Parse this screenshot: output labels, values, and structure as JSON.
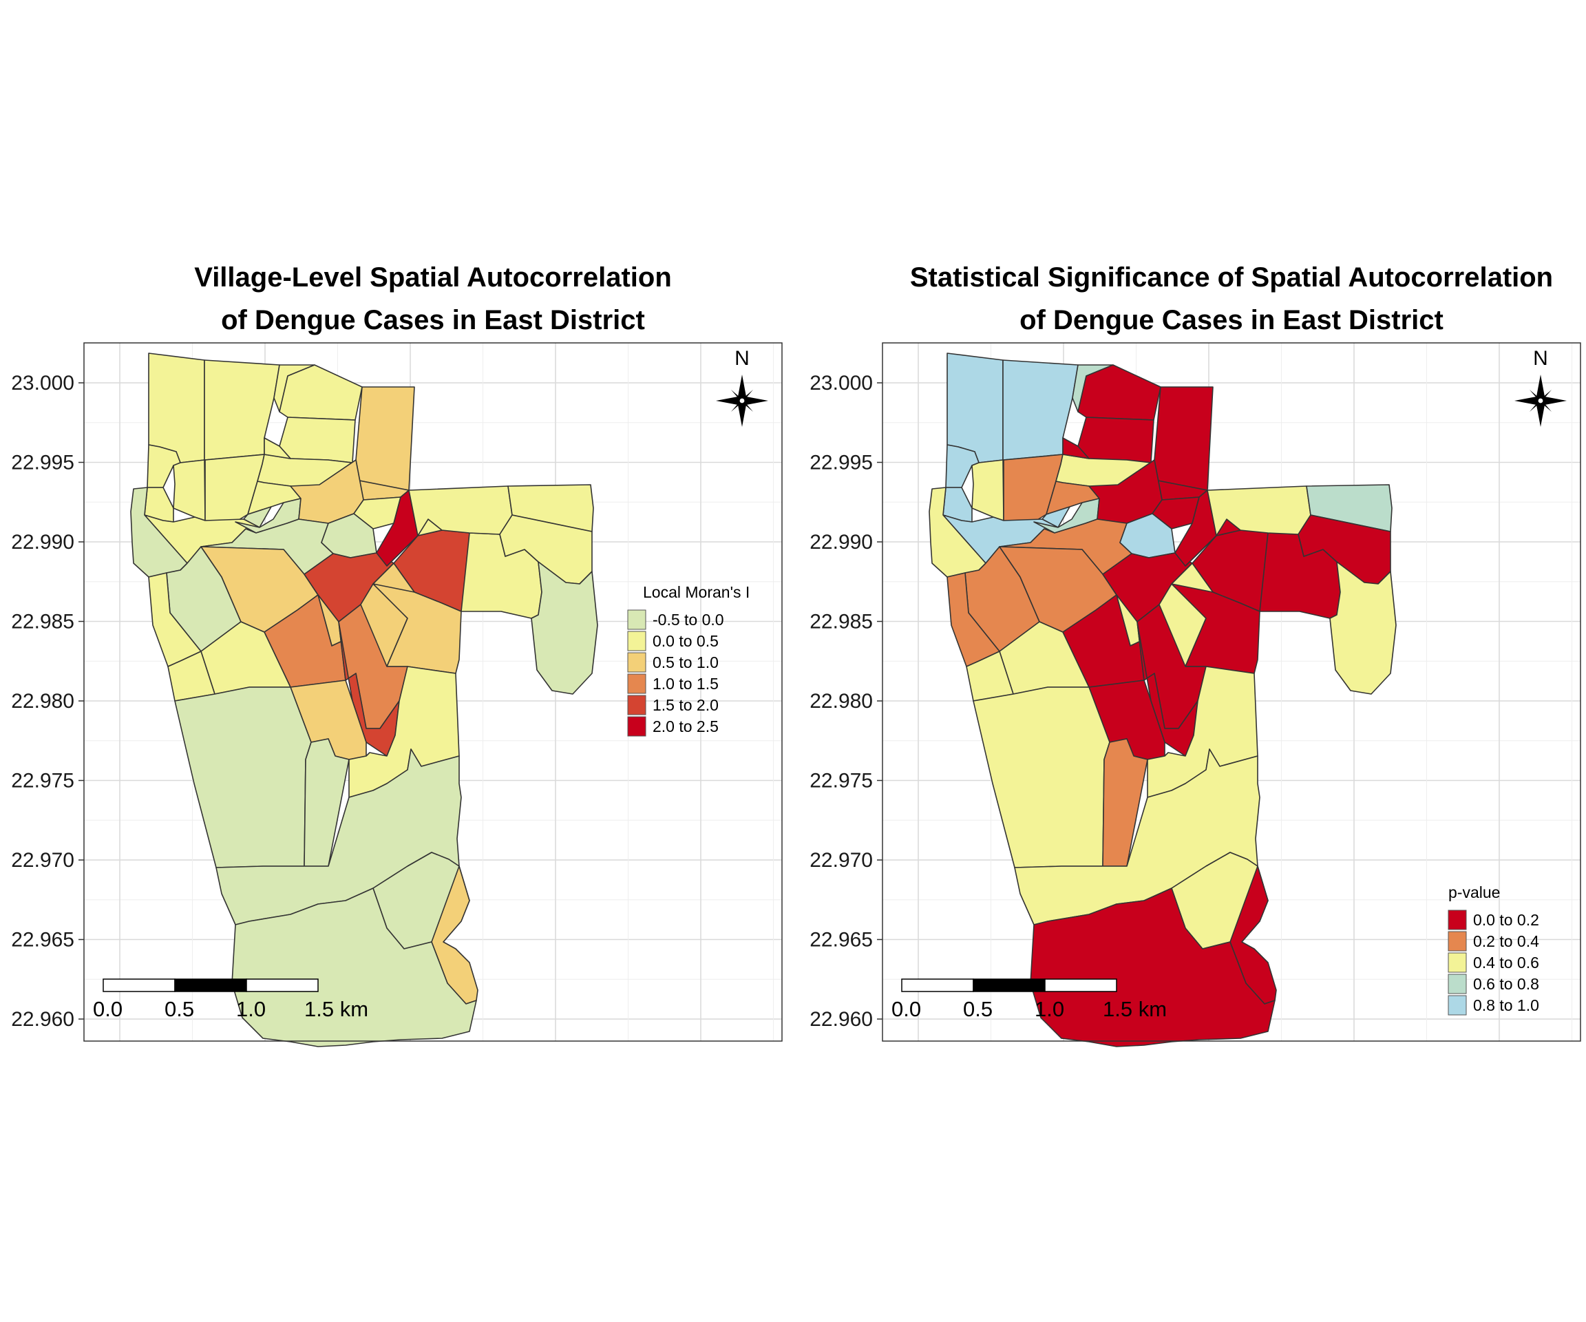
{
  "panels": [
    {
      "id": "moran",
      "title_line1": "Village-Level Spatial Autocorrelation",
      "title_line2": "of Dengue Cases in East District",
      "legend_title": "Local Moran's I",
      "legend": [
        {
          "label": "-0.5 to 0.0",
          "color": "#D8E8B4"
        },
        {
          "label": "0.0 to 0.5",
          "color": "#F3F397"
        },
        {
          "label": "0.5 to 1.0",
          "color": "#F3D078"
        },
        {
          "label": "1.0 to 1.5",
          "color": "#E5874F"
        },
        {
          "label": "1.5 to 2.0",
          "color": "#D44431"
        },
        {
          "label": "2.0 to 2.5",
          "color": "#C8001C"
        }
      ]
    },
    {
      "id": "pvalue",
      "title_line1": "Statistical Significance of Spatial Autocorrelation",
      "title_line2": "of Dengue Cases in East District",
      "legend_title": "p-value",
      "legend": [
        {
          "label": "0.0 to 0.2",
          "color": "#C8001C"
        },
        {
          "label": "0.2 to 0.4",
          "color": "#E5874F"
        },
        {
          "label": "0.4 to 0.6",
          "color": "#F3F397"
        },
        {
          "label": "0.6 to 0.8",
          "color": "#BBDDCB"
        },
        {
          "label": "0.8 to 1.0",
          "color": "#ADD8E6"
        }
      ]
    }
  ],
  "y_axis_ticks": [
    "23.000",
    "22.995",
    "22.990",
    "22.985",
    "22.980",
    "22.975",
    "22.970",
    "22.965",
    "22.960"
  ],
  "scale_bar": {
    "labels": [
      "0.0",
      "0.5",
      "1.0",
      "1.5 km"
    ]
  },
  "north_label": "N",
  "villages": [
    {
      "id": "v01",
      "moran": 1,
      "p": 4
    },
    {
      "id": "v02",
      "moran": 1,
      "p": 4
    },
    {
      "id": "v03",
      "moran": 1,
      "p": 3
    },
    {
      "id": "v04",
      "moran": 1,
      "p": 0
    },
    {
      "id": "v05",
      "moran": 2,
      "p": 0
    },
    {
      "id": "v06",
      "moran": 1,
      "p": 4
    },
    {
      "id": "v07",
      "moran": 1,
      "p": 2
    },
    {
      "id": "v08",
      "moran": 1,
      "p": 4
    },
    {
      "id": "v09",
      "moran": 1,
      "p": 1
    },
    {
      "id": "v10",
      "moran": 1,
      "p": 0
    },
    {
      "id": "v11",
      "moran": 1,
      "p": 2
    },
    {
      "id": "v12",
      "moran": 1,
      "p": 0
    },
    {
      "id": "v13",
      "moran": 2,
      "p": 0
    },
    {
      "id": "v14",
      "moran": 1,
      "p": 1
    },
    {
      "id": "v15",
      "moran": 0,
      "p": 4
    },
    {
      "id": "v16",
      "moran": 1,
      "p": 4
    },
    {
      "id": "v17",
      "moran": 0,
      "p": 3
    },
    {
      "id": "v18",
      "moran": 2,
      "p": 0
    },
    {
      "id": "v19",
      "moran": 1,
      "p": 0
    },
    {
      "id": "v20",
      "moran": 0,
      "p": 1
    },
    {
      "id": "v21",
      "moran": 0,
      "p": 4
    },
    {
      "id": "v22",
      "moran": 0,
      "p": 2
    },
    {
      "id": "v23",
      "moran": 0,
      "p": 1
    },
    {
      "id": "v24",
      "moran": 1,
      "p": 1
    },
    {
      "id": "v25",
      "moran": 2,
      "p": 1
    },
    {
      "id": "v26",
      "moran": 4,
      "p": 0
    },
    {
      "id": "v27",
      "moran": 5,
      "p": 0
    },
    {
      "id": "v28",
      "moran": 4,
      "p": 0
    },
    {
      "id": "v29",
      "moran": 2,
      "p": 2
    },
    {
      "id": "v30",
      "moran": 3,
      "p": 0
    },
    {
      "id": "v31",
      "moran": 1,
      "p": 2
    },
    {
      "id": "v32",
      "moran": 1,
      "p": 2
    },
    {
      "id": "v33",
      "moran": 2,
      "p": 0
    },
    {
      "id": "v34",
      "moran": 3,
      "p": 0
    },
    {
      "id": "v35",
      "moran": 4,
      "p": 0
    },
    {
      "id": "v36",
      "moran": 2,
      "p": 0
    },
    {
      "id": "v37",
      "moran": 0,
      "p": 2
    },
    {
      "id": "v38",
      "moran": 0,
      "p": 1
    },
    {
      "id": "v39",
      "moran": 1,
      "p": 2
    },
    {
      "id": "v40",
      "moran": 1,
      "p": 0
    },
    {
      "id": "v41",
      "moran": 1,
      "p": 0
    },
    {
      "id": "v42",
      "moran": 1,
      "p": 2
    },
    {
      "id": "v43",
      "moran": 1,
      "p": 3
    },
    {
      "id": "v44",
      "moran": 1,
      "p": 0
    },
    {
      "id": "v45",
      "moran": 0,
      "p": 2
    },
    {
      "id": "v46",
      "moran": 0,
      "p": 2
    },
    {
      "id": "v47",
      "moran": 0,
      "p": 2
    },
    {
      "id": "v48",
      "moran": 2,
      "p": 0
    },
    {
      "id": "v49",
      "moran": 0,
      "p": 0
    }
  ]
}
